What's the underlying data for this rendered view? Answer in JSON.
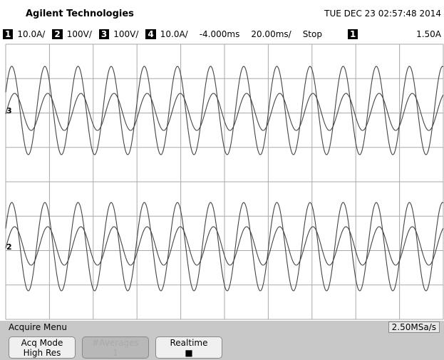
{
  "header": {
    "brand": "Agilent Technologies",
    "datetime": "TUE DEC 23 02:57:48 2014"
  },
  "status": {
    "channels": [
      {
        "number": "1",
        "scale": "10.0A/"
      },
      {
        "number": "2",
        "scale": "100V/"
      },
      {
        "number": "3",
        "scale": "100V/"
      },
      {
        "number": "4",
        "scale": "10.0A/"
      }
    ],
    "delay": "-4.000ms",
    "timebase": "20.00ms/",
    "run_state": "Stop",
    "trigger_source": "1",
    "trigger_level": "1.50A"
  },
  "markers": [
    "3",
    "2"
  ],
  "menu": {
    "title": "Acquire Menu",
    "sample_rate": "2.50MSa/s",
    "softkeys": [
      {
        "label": "Acq Mode",
        "value": "High Res",
        "disabled": false
      },
      {
        "label": "#Averages",
        "value": "1",
        "disabled": true
      },
      {
        "label": "Realtime",
        "value": "■",
        "disabled": false
      }
    ]
  }
}
